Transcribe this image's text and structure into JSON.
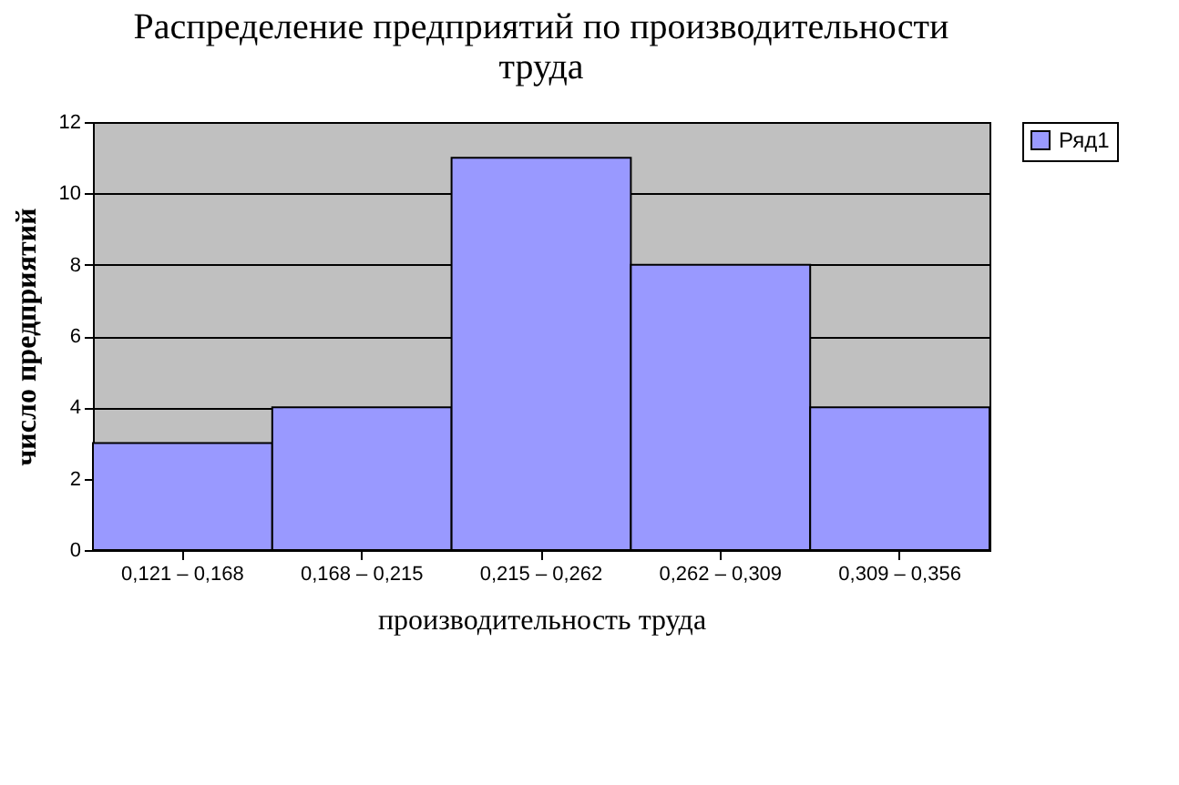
{
  "chart_data": {
    "type": "bar",
    "title": "Распределение предприятий по производительности труда",
    "xlabel": "производительность труда",
    "ylabel": "число предприятий",
    "categories": [
      "0,121 – 0,168",
      "0,168 – 0,215",
      "0,215 – 0,262",
      "0,262 – 0,309",
      "0,309 – 0,356"
    ],
    "series": [
      {
        "name": "Ряд1",
        "color": "#9999ff",
        "values": [
          3,
          4,
          11,
          8,
          4
        ]
      }
    ],
    "ylim": [
      0,
      12
    ],
    "yticks": [
      0,
      2,
      4,
      6,
      8,
      10,
      12
    ],
    "grid": "y",
    "legend": "right"
  }
}
